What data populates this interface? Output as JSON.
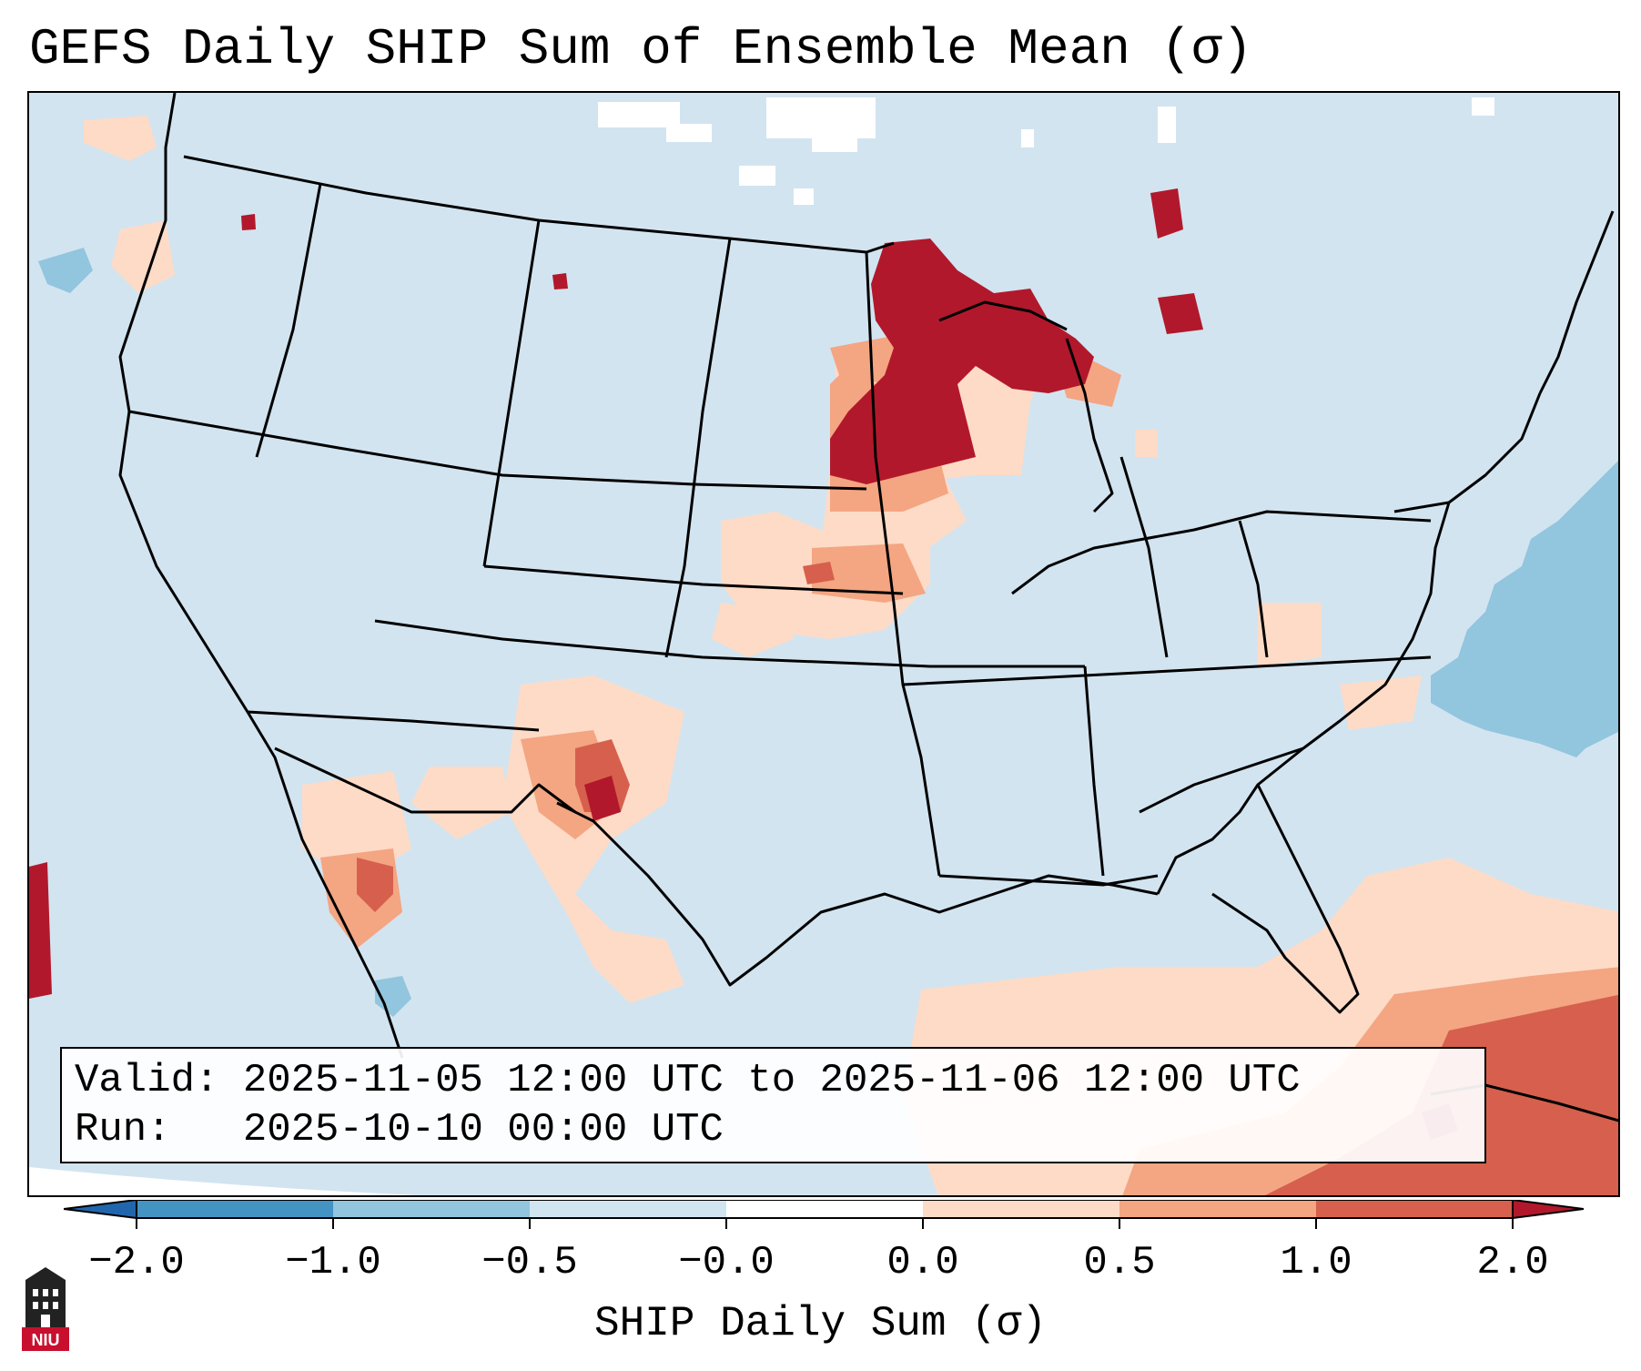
{
  "title": "GEFS Daily SHIP Sum of Ensemble Mean (σ)",
  "info": {
    "valid_label": "Valid:",
    "valid_value": "2025-11-05 12:00 UTC to 2025-11-06 12:00 UTC",
    "run_label": "Run:",
    "run_value": "2025-10-10 00:00 UTC"
  },
  "colorbar": {
    "label": "SHIP Daily Sum (σ)",
    "ticks": [
      "−2.0",
      "−1.0",
      "−0.5",
      "−0.0",
      "0.0",
      "0.5",
      "1.0",
      "2.0"
    ],
    "bin_colors": [
      "#4393c3",
      "#92c5de",
      "#d1e5f0",
      "#fddbc7",
      "#f4a582",
      "#d6604d",
      "#b2182b"
    ],
    "extend_low_color": "#2166ac",
    "extend_high_color": "#b2182b",
    "background_color": "#d2e4f0"
  },
  "logo": {
    "text": "NIU",
    "name": "Northern Illinois University logo"
  },
  "map": {
    "projection": "Lambert conformal, CONUS",
    "features": [
      "coastlines",
      "state borders",
      "country borders"
    ],
    "highlight_regions": [
      {
        "name": "Upper Midwest / Minnesota–Wisconsin",
        "category": "≥ 2.0σ"
      },
      {
        "name": "Northern Michigan / Lake Superior",
        "category": "≥ 2.0σ"
      },
      {
        "name": "Ontario",
        "category": "≥ 2.0σ"
      },
      {
        "name": "New Mexico",
        "category": "1.0–2.0σ"
      },
      {
        "name": "Southern Arizona",
        "category": "1.0–2.0σ"
      },
      {
        "name": "Iowa",
        "category": "0.5–1.0σ"
      },
      {
        "name": "Kansas",
        "category": "0.5–1.0σ"
      },
      {
        "name": "Caribbean / Cuba",
        "category": "1.0–2.0σ"
      },
      {
        "name": "Western Atlantic",
        "category": "−1.0 to −0.5σ"
      },
      {
        "name": "Pacific off California",
        "category": "≥ 2.0σ"
      }
    ]
  }
}
